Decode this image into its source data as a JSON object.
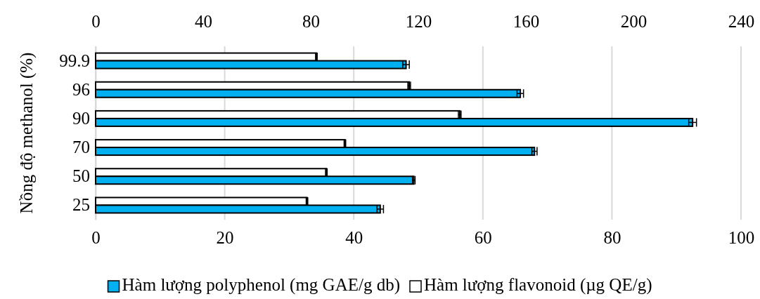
{
  "chart_data": {
    "type": "bar",
    "orientation": "horizontal",
    "ylabel": "Nồng độ methanol (%)",
    "categories": [
      "99.9",
      "96",
      "90",
      "70",
      "50",
      "25"
    ],
    "series": [
      {
        "name": "Hàm lượng flavonoid (µg QE/g)",
        "color": "#ffffff",
        "axis": "x2",
        "values": [
          82.1,
          116.6,
          135.4,
          92.7,
          85.8,
          78.6
        ],
        "errors": [
          0.3,
          0.5,
          0.5,
          0.3,
          0.3,
          0.3
        ]
      },
      {
        "name": "Hàm lượng polyphenol (mg GAE/g db)",
        "color": "#00b0f0",
        "values": [
          48.1,
          65.8,
          92.5,
          68.0,
          49.3,
          44.1
        ],
        "errors": [
          0.5,
          0.5,
          0.6,
          0.4,
          0.2,
          0.5
        ]
      }
    ],
    "xlim": [
      0,
      100
    ],
    "xticks": [
      0,
      20,
      40,
      60,
      80,
      100
    ],
    "x2lim": [
      0,
      240
    ],
    "x2ticks": [
      0,
      40,
      80,
      120,
      160,
      200,
      240
    ],
    "grid": "x",
    "legend": "bottom"
  }
}
